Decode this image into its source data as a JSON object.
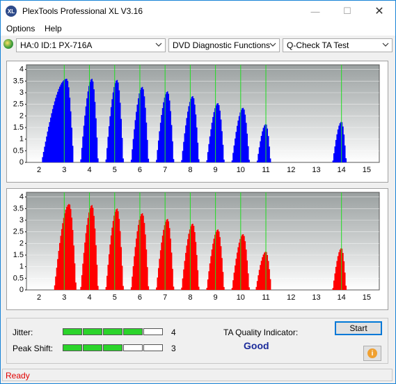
{
  "window": {
    "title": "PlexTools Professional XL V3.16"
  },
  "menu": {
    "options": "Options",
    "help": "Help"
  },
  "toolbar": {
    "drive": "HA:0 ID:1  PX-716A",
    "function": "DVD Diagnostic Functions",
    "test": "Q-Check TA Test"
  },
  "charts": [
    {
      "name": "top",
      "bar_color": "#0000ff",
      "y_ticks": [
        "0",
        "0.5",
        "1",
        "1.5",
        "2",
        "2.5",
        "3",
        "3.5",
        "4"
      ],
      "x_ticks": [
        "2",
        "3",
        "4",
        "5",
        "6",
        "7",
        "8",
        "9",
        "10",
        "11",
        "12",
        "13",
        "14",
        "15"
      ],
      "green_lines": [
        3,
        4,
        5,
        6,
        7,
        8,
        9,
        10,
        11,
        14
      ]
    },
    {
      "name": "bottom",
      "bar_color": "#ff0000",
      "y_ticks": [
        "0",
        "0.5",
        "1",
        "1.5",
        "2",
        "2.5",
        "3",
        "3.5",
        "4"
      ],
      "x_ticks": [
        "2",
        "3",
        "4",
        "5",
        "6",
        "7",
        "8",
        "9",
        "10",
        "11",
        "12",
        "13",
        "14",
        "15"
      ],
      "green_lines": [
        3,
        4,
        5,
        6,
        7,
        8,
        9,
        10,
        11,
        14
      ]
    }
  ],
  "chart_data": [
    {
      "type": "area",
      "title": "",
      "xlim": [
        1.5,
        15.5
      ],
      "ylim": [
        0,
        4.2
      ],
      "series": [
        {
          "color": "#0000ff",
          "peaks": [
            {
              "x": 3.1,
              "y": 3.6,
              "w": 0.5,
              "start": 2.1
            },
            {
              "x": 4.1,
              "y": 3.6,
              "w": 0.45
            },
            {
              "x": 5.1,
              "y": 3.55,
              "w": 0.45
            },
            {
              "x": 6.1,
              "y": 3.25,
              "w": 0.45
            },
            {
              "x": 7.1,
              "y": 3.05,
              "w": 0.45
            },
            {
              "x": 8.1,
              "y": 2.85,
              "w": 0.45
            },
            {
              "x": 9.1,
              "y": 2.55,
              "w": 0.45
            },
            {
              "x": 10.1,
              "y": 2.35,
              "w": 0.45
            },
            {
              "x": 11.0,
              "y": 1.65,
              "w": 0.35
            },
            {
              "x": 14.0,
              "y": 1.75,
              "w": 0.35
            }
          ]
        }
      ]
    },
    {
      "type": "area",
      "title": "",
      "xlim": [
        1.5,
        15.5
      ],
      "ylim": [
        0,
        4.2
      ],
      "series": [
        {
          "color": "#ff0000",
          "peaks": [
            {
              "x": 3.2,
              "y": 3.7,
              "w": 0.5,
              "start": 2.6
            },
            {
              "x": 4.1,
              "y": 3.65,
              "w": 0.45
            },
            {
              "x": 5.1,
              "y": 3.5,
              "w": 0.45
            },
            {
              "x": 6.1,
              "y": 3.3,
              "w": 0.45
            },
            {
              "x": 7.1,
              "y": 3.05,
              "w": 0.45
            },
            {
              "x": 8.1,
              "y": 2.85,
              "w": 0.45
            },
            {
              "x": 9.1,
              "y": 2.6,
              "w": 0.45
            },
            {
              "x": 10.1,
              "y": 2.4,
              "w": 0.45
            },
            {
              "x": 11.0,
              "y": 1.65,
              "w": 0.4
            },
            {
              "x": 14.0,
              "y": 1.8,
              "w": 0.35
            }
          ]
        }
      ]
    }
  ],
  "results": {
    "jitter_label": "Jitter:",
    "jitter_value": "4",
    "jitter_segments": [
      true,
      true,
      true,
      true,
      false
    ],
    "peak_label": "Peak Shift:",
    "peak_value": "3",
    "peak_segments": [
      true,
      true,
      true,
      false,
      false
    ],
    "ta_label": "TA Quality Indicator:",
    "ta_value": "Good"
  },
  "buttons": {
    "start": "Start"
  },
  "status": "Ready"
}
